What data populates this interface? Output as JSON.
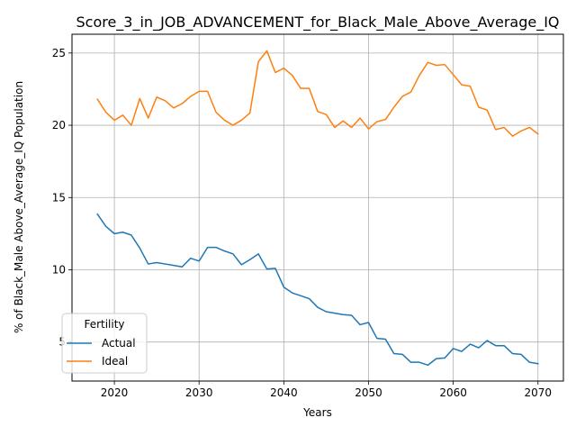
{
  "chart_data": {
    "type": "line",
    "title": "Score_3_in_JOB_ADVANCEMENT_for_Black_Male_Above_Average_IQ",
    "xlabel": "Years",
    "ylabel": "% of Black_Male Above_Average_IQ Population",
    "xlim": [
      2015,
      2073
    ],
    "ylim": [
      2.3,
      26.3
    ],
    "xticks": [
      2020,
      2030,
      2040,
      2050,
      2060,
      2070
    ],
    "yticks": [
      5,
      10,
      15,
      20,
      25
    ],
    "grid": true,
    "legend": {
      "title": "Fertility",
      "placement": "bottom-left"
    },
    "x": [
      2018,
      2019,
      2020,
      2021,
      2022,
      2023,
      2024,
      2025,
      2026,
      2027,
      2028,
      2029,
      2030,
      2031,
      2032,
      2033,
      2034,
      2035,
      2036,
      2037,
      2038,
      2039,
      2040,
      2041,
      2042,
      2043,
      2044,
      2045,
      2046,
      2047,
      2048,
      2049,
      2050,
      2051,
      2052,
      2053,
      2054,
      2055,
      2056,
      2057,
      2058,
      2059,
      2060,
      2061,
      2062,
      2063,
      2064,
      2065,
      2066,
      2067,
      2068,
      2069,
      2070
    ],
    "series": [
      {
        "name": "Actual",
        "color": "#1f77b4",
        "values": [
          13.85,
          13.0,
          12.5,
          12.6,
          12.4,
          11.5,
          10.4,
          10.5,
          10.4,
          10.3,
          10.2,
          10.8,
          10.6,
          11.55,
          11.55,
          11.3,
          11.1,
          10.35,
          10.7,
          11.1,
          10.05,
          10.1,
          8.8,
          8.4,
          8.2,
          8.0,
          7.4,
          7.1,
          7.0,
          6.9,
          6.85,
          6.2,
          6.35,
          5.25,
          5.2,
          4.2,
          4.15,
          3.6,
          3.6,
          3.4,
          3.85,
          3.9,
          4.55,
          4.35,
          4.85,
          4.6,
          5.1,
          4.75,
          4.75,
          4.2,
          4.15,
          3.6,
          3.5
        ]
      },
      {
        "name": "Ideal",
        "color": "#ff7f0e",
        "values": [
          21.8,
          20.9,
          20.35,
          20.7,
          20.0,
          21.85,
          20.5,
          21.95,
          21.7,
          21.2,
          21.5,
          22.0,
          22.35,
          22.35,
          20.9,
          20.35,
          20.0,
          20.35,
          20.85,
          24.4,
          25.15,
          23.65,
          23.95,
          23.45,
          22.55,
          22.55,
          20.95,
          20.75,
          19.85,
          20.3,
          19.85,
          20.5,
          19.75,
          20.25,
          20.4,
          21.25,
          22.0,
          22.3,
          23.45,
          24.35,
          24.15,
          24.2,
          23.5,
          22.8,
          22.7,
          21.25,
          21.05,
          19.7,
          19.85,
          19.25,
          19.6,
          19.85,
          19.4
        ]
      }
    ]
  }
}
